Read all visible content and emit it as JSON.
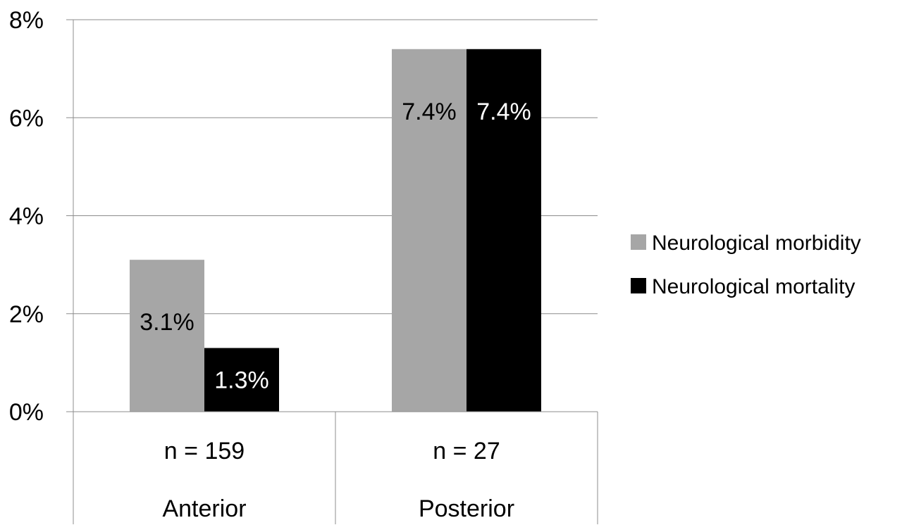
{
  "chart_data": {
    "type": "bar",
    "title": "",
    "xlabel": "",
    "ylabel": "",
    "ylim": [
      0,
      8
    ],
    "y_ticks": [
      {
        "value": 0,
        "label": "0%"
      },
      {
        "value": 2,
        "label": "2%"
      },
      {
        "value": 4,
        "label": "4%"
      },
      {
        "value": 6,
        "label": "6%"
      },
      {
        "value": 8,
        "label": "8%"
      }
    ],
    "categories": [
      {
        "sample": "n = 159",
        "name": "Anterior"
      },
      {
        "sample": "n = 27",
        "name": "Posterior"
      }
    ],
    "series": [
      {
        "name": "Neurological morbidity",
        "color": "#a6a6a6",
        "label_color": "#000000",
        "values": [
          3.1,
          7.4
        ],
        "labels": [
          "3.1%",
          "7.4%"
        ]
      },
      {
        "name": "Neurological mortality",
        "color": "#000000",
        "label_color": "#ffffff",
        "values": [
          1.3,
          7.4
        ],
        "labels": [
          "1.3%",
          "7.4%"
        ]
      }
    ],
    "grid": true,
    "legend": "right"
  }
}
